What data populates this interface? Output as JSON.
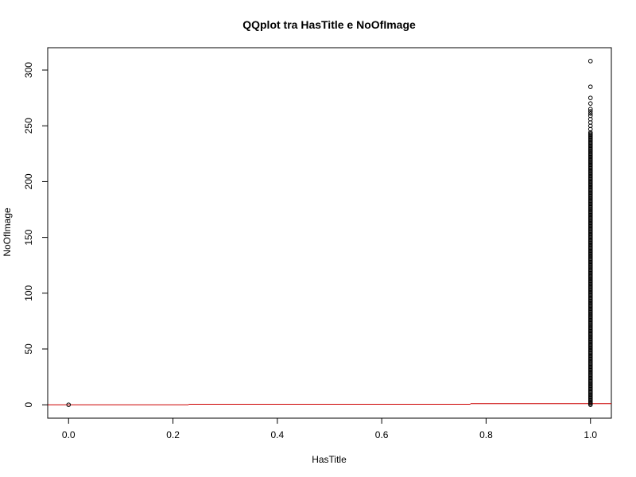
{
  "chart_data": {
    "type": "scatter",
    "title": "QQplot tra HasTitle e NoOfImage",
    "xlabel": "HasTitle",
    "ylabel": "NoOfImage",
    "xlim": [
      -0.04,
      1.04
    ],
    "ylim": [
      -12,
      320
    ],
    "x_ticks": [
      {
        "value": 0.0,
        "label": "0.0"
      },
      {
        "value": 0.2,
        "label": "0.2"
      },
      {
        "value": 0.4,
        "label": "0.4"
      },
      {
        "value": 0.6,
        "label": "0.6"
      },
      {
        "value": 0.8,
        "label": "0.8"
      },
      {
        "value": 1.0,
        "label": "1.0"
      }
    ],
    "y_ticks": [
      {
        "value": 0,
        "label": "0"
      },
      {
        "value": 50,
        "label": "50"
      },
      {
        "value": 100,
        "label": "100"
      },
      {
        "value": 150,
        "label": "150"
      },
      {
        "value": 200,
        "label": "200"
      },
      {
        "value": 250,
        "label": "250"
      },
      {
        "value": 300,
        "label": "300"
      }
    ],
    "points": {
      "x0": [
        0
      ],
      "x1_dense_range": [
        0,
        244
      ],
      "x1_sparse": [
        247,
        250,
        253,
        256,
        259,
        261,
        263,
        265,
        270,
        275,
        285,
        308
      ]
    },
    "reference_line": {
      "color": "#cc0000",
      "segments": [
        {
          "x": [
            -0.04,
            0.23
          ],
          "y": [
            0,
            0
          ]
        },
        {
          "x": [
            0.23,
            0.77
          ],
          "y": [
            0.5,
            0.5
          ]
        },
        {
          "x": [
            0.77,
            1.04
          ],
          "y": [
            1,
            1
          ]
        }
      ]
    },
    "grid": false,
    "legend": "none"
  }
}
